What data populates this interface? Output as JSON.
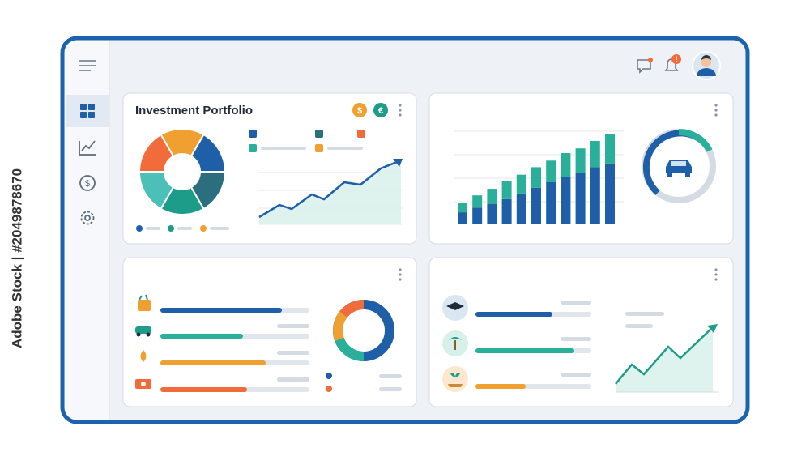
{
  "watermark": "Adobe Stock | #2049878670",
  "header": {
    "notification_badge": "!"
  },
  "cards": [
    {
      "title": "Investment Portfolio",
      "badges": [
        "$",
        "€"
      ]
    }
  ],
  "chart_data": {
    "type": "bar",
    "stacked": true,
    "ylim": [
      0,
      100
    ],
    "categories": [
      null,
      null,
      null,
      null,
      null,
      null,
      null,
      null,
      null,
      null,
      null
    ],
    "series": [
      {
        "color": "#1e5fa8",
        "values": [
          12,
          17,
          21,
          26,
          32,
          38,
          44,
          50,
          54,
          60,
          64
        ]
      },
      {
        "color": "#2ab09a",
        "values": [
          10,
          13,
          16,
          19,
          20,
          22,
          23,
          25,
          26,
          28,
          31
        ]
      }
    ]
  }
}
